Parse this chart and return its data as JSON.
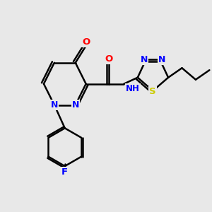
{
  "background_color": "#e8e8e8",
  "atom_colors": {
    "N": "#0000ff",
    "O": "#ff0000",
    "S": "#cccc00",
    "F": "#0000ff",
    "C": "#000000",
    "H": "#0000ee"
  },
  "bond_color": "#000000",
  "bond_width": 1.8,
  "figsize": [
    3.0,
    3.0
  ],
  "dpi": 100,
  "xlim": [
    0,
    10
  ],
  "ylim": [
    0,
    10
  ]
}
